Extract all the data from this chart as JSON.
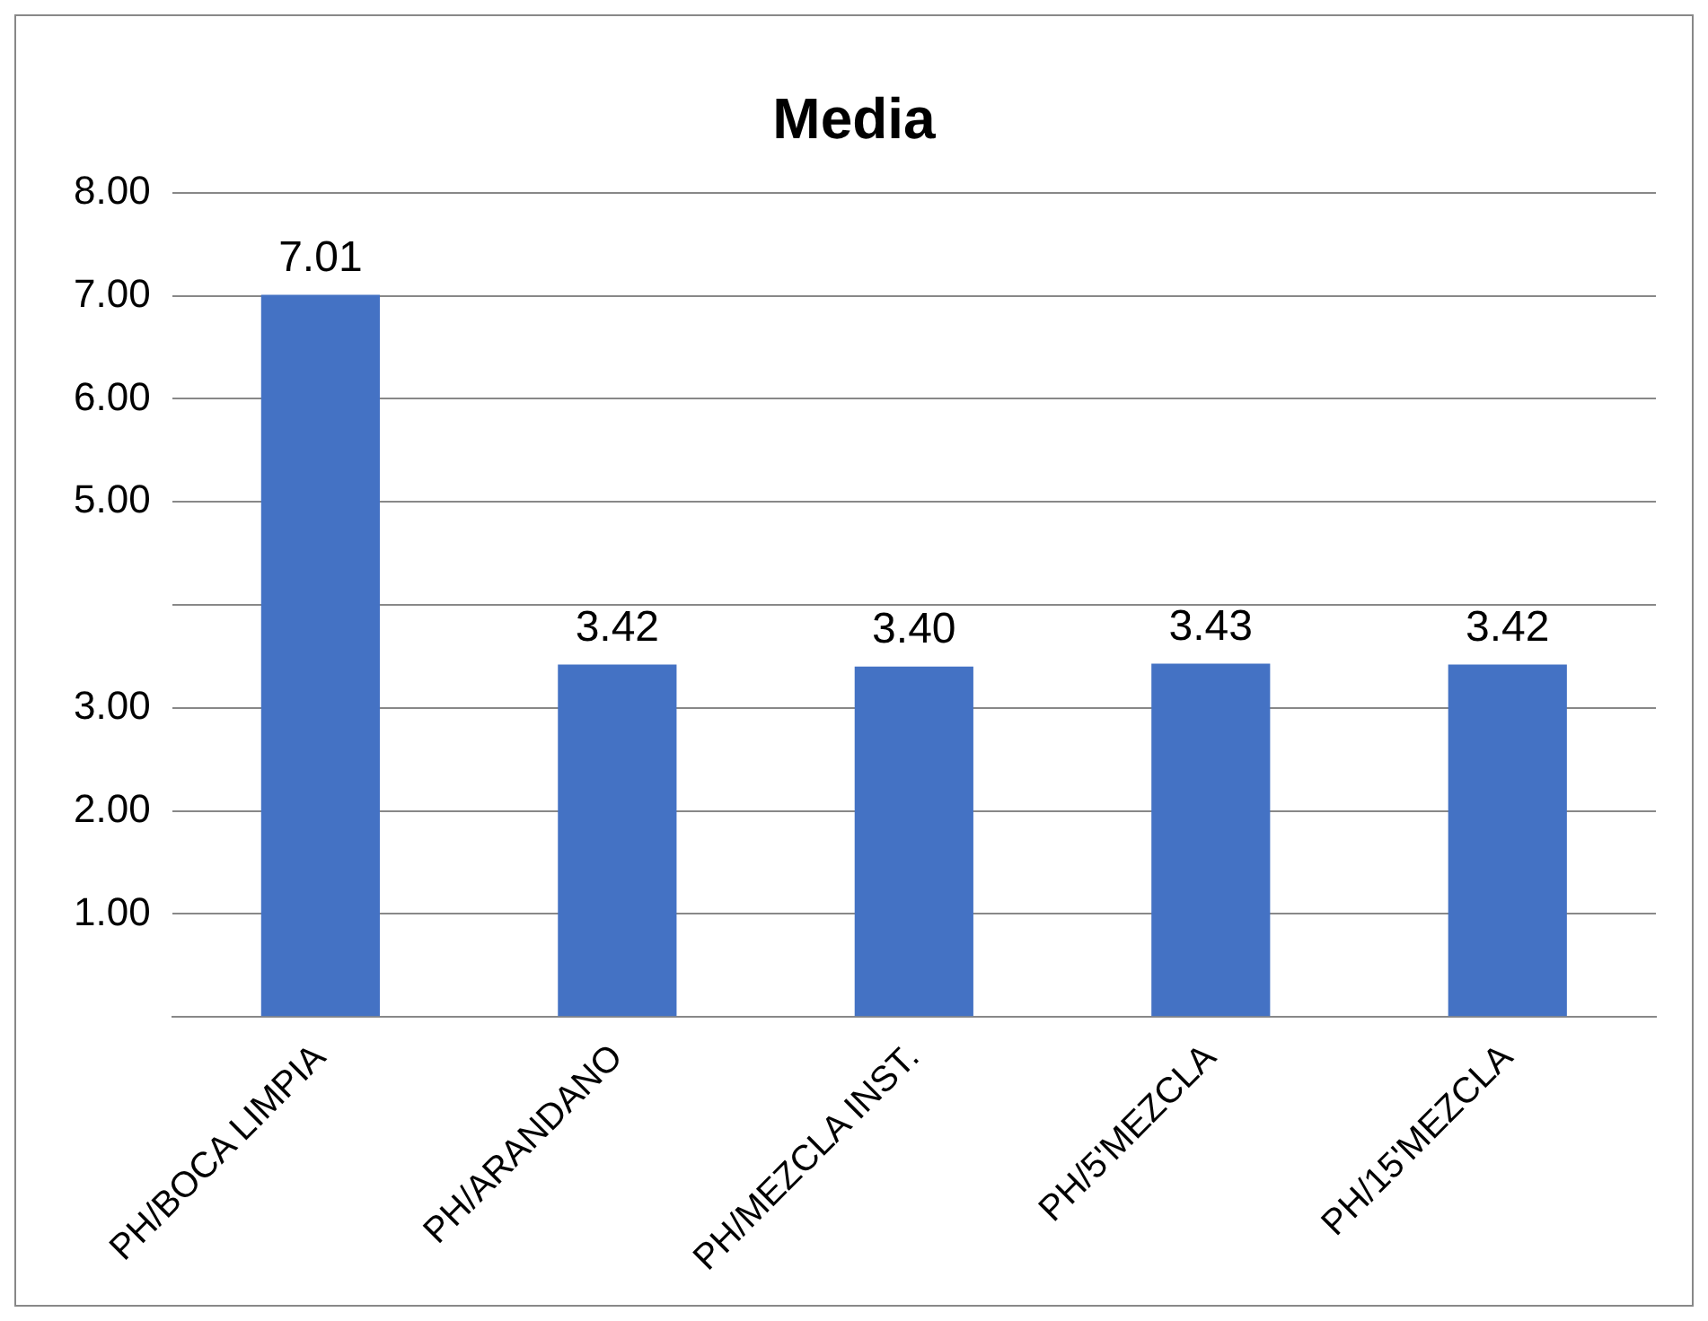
{
  "chart_data": {
    "type": "bar",
    "title": "Media",
    "categories": [
      "PH/BOCA LIMPIA",
      "PH/ARANDANO",
      "PH/MEZCLA INST.",
      "PH/5'MEZCLA",
      "PH/15'MEZCLA"
    ],
    "values": [
      7.01,
      3.42,
      3.4,
      3.43,
      3.42
    ],
    "value_labels": [
      "7.01",
      "3.42",
      "3.40",
      "3.43",
      "3.42"
    ],
    "color": "#4472c4",
    "ylim": [
      0,
      8
    ],
    "yticks": [
      {
        "value": 0,
        "label": null
      },
      {
        "value": 1,
        "label": "1.00"
      },
      {
        "value": 2,
        "label": "2.00"
      },
      {
        "value": 3,
        "label": "3.00"
      },
      {
        "value": 4,
        "label": null
      },
      {
        "value": 5,
        "label": "5.00"
      },
      {
        "value": 6,
        "label": "6.00"
      },
      {
        "value": 7,
        "label": "7.00"
      },
      {
        "value": 8,
        "label": "8.00"
      }
    ],
    "grid": "y",
    "legend": false
  }
}
